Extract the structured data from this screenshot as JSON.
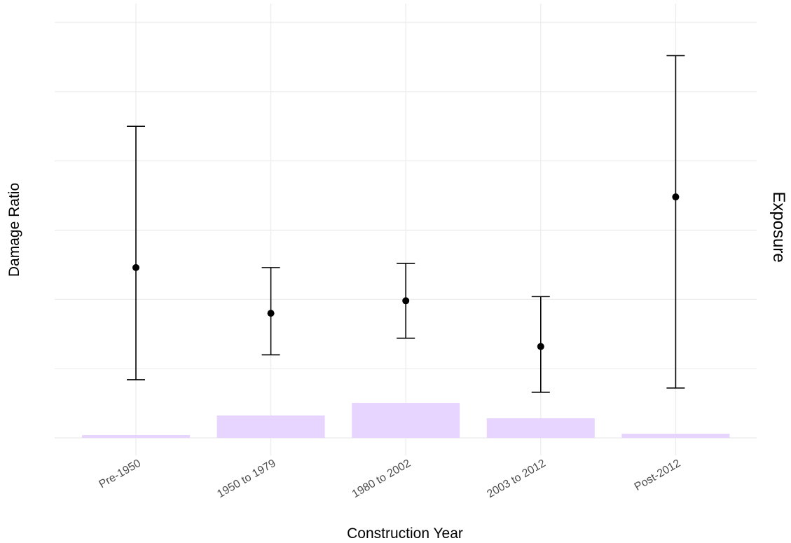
{
  "chart_data": {
    "type": "bar",
    "xlabel": "Construction Year",
    "ylabel": "Damage Ratio",
    "y2label": "Exposure",
    "categories": [
      "Pre-1950",
      "1950 to 1979",
      "1980 to 2002",
      "2003 to 2012",
      "Post-2012"
    ],
    "exposure_relative": [
      0.04,
      0.32,
      0.5,
      0.28,
      0.06
    ],
    "damage_ratio_relative": {
      "estimate": [
        0.41,
        0.3,
        0.33,
        0.22,
        0.58
      ],
      "lower": [
        0.14,
        0.2,
        0.24,
        0.11,
        0.12
      ],
      "upper": [
        0.75,
        0.41,
        0.42,
        0.34,
        0.92
      ]
    },
    "y_axis_tick_labels_shown": false,
    "grid": true,
    "colors": {
      "exposure_bar": "#e8d5ff",
      "point": "#000000",
      "errorbar": "#000000",
      "grid": "#ebebeb"
    }
  }
}
